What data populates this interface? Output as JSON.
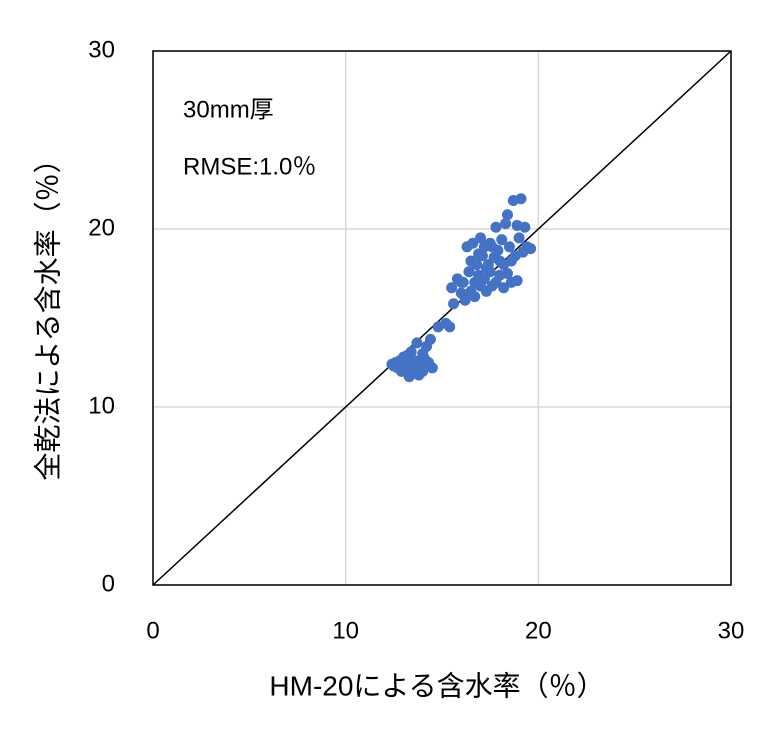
{
  "chart_data": {
    "type": "scatter",
    "annotations": [
      "30mm厚",
      "RMSE:1.0％"
    ],
    "x_label": "HM-20による含水率（％）",
    "y_label": "全乾法による含水率（％）",
    "xlim": [
      0,
      30
    ],
    "ylim": [
      0,
      30
    ],
    "xticks": [
      0,
      10,
      20,
      30
    ],
    "yticks": [
      0,
      10,
      20,
      30
    ],
    "grid": true,
    "identity_line": true,
    "color": "#4472c4",
    "x": [
      12.4,
      12.5,
      12.6,
      12.7,
      12.8,
      12.9,
      13.0,
      13.1,
      13.2,
      13.3,
      13.4,
      13.5,
      13.6,
      13.7,
      13.8,
      13.9,
      14.0,
      14.1,
      14.2,
      14.3,
      14.4,
      14.5,
      13.2,
      12.9,
      13.6,
      14.0,
      14.8,
      15.2,
      15.4,
      15.6,
      15.5,
      15.8,
      16.0,
      16.1,
      16.2,
      16.3,
      16.4,
      16.5,
      16.5,
      16.6,
      16.7,
      16.7,
      16.8,
      16.9,
      17.0,
      17.0,
      17.1,
      17.2,
      17.2,
      17.3,
      17.4,
      17.5,
      17.5,
      17.6,
      17.7,
      17.8,
      17.8,
      17.9,
      18.0,
      18.1,
      18.2,
      18.2,
      18.3,
      18.4,
      18.4,
      18.5,
      18.6,
      18.6,
      18.7,
      18.8,
      18.9,
      19.0,
      19.1,
      19.2,
      19.3,
      19.4,
      19.6,
      18.0,
      17.3,
      16.9,
      18.9,
      16.0,
      17.6
    ],
    "values": [
      12.4,
      12.3,
      12.5,
      12.2,
      12.6,
      12.4,
      12.8,
      12.1,
      12.5,
      11.7,
      13.1,
      12.0,
      12.6,
      13.6,
      11.8,
      12.3,
      13.0,
      12.7,
      13.4,
      12.5,
      13.8,
      12.2,
      12.9,
      12.0,
      12.2,
      12.0,
      14.5,
      14.7,
      14.5,
      15.8,
      16.7,
      17.2,
      16.4,
      17.0,
      16.0,
      19.0,
      17.6,
      18.2,
      16.5,
      19.2,
      17.0,
      16.2,
      18.0,
      17.4,
      19.5,
      16.8,
      18.5,
      17.2,
      19.0,
      16.5,
      18.0,
      17.6,
      19.2,
      16.8,
      18.4,
      17.0,
      20.1,
      18.8,
      17.4,
      19.4,
      16.7,
      18.0,
      20.3,
      20.8,
      17.5,
      19.0,
      18.2,
      17.0,
      21.6,
      18.5,
      20.2,
      19.5,
      21.7,
      18.7,
      20.1,
      19.0,
      18.9,
      18.2,
      17.8,
      18.6,
      17.1,
      17.0,
      19.0
    ]
  }
}
